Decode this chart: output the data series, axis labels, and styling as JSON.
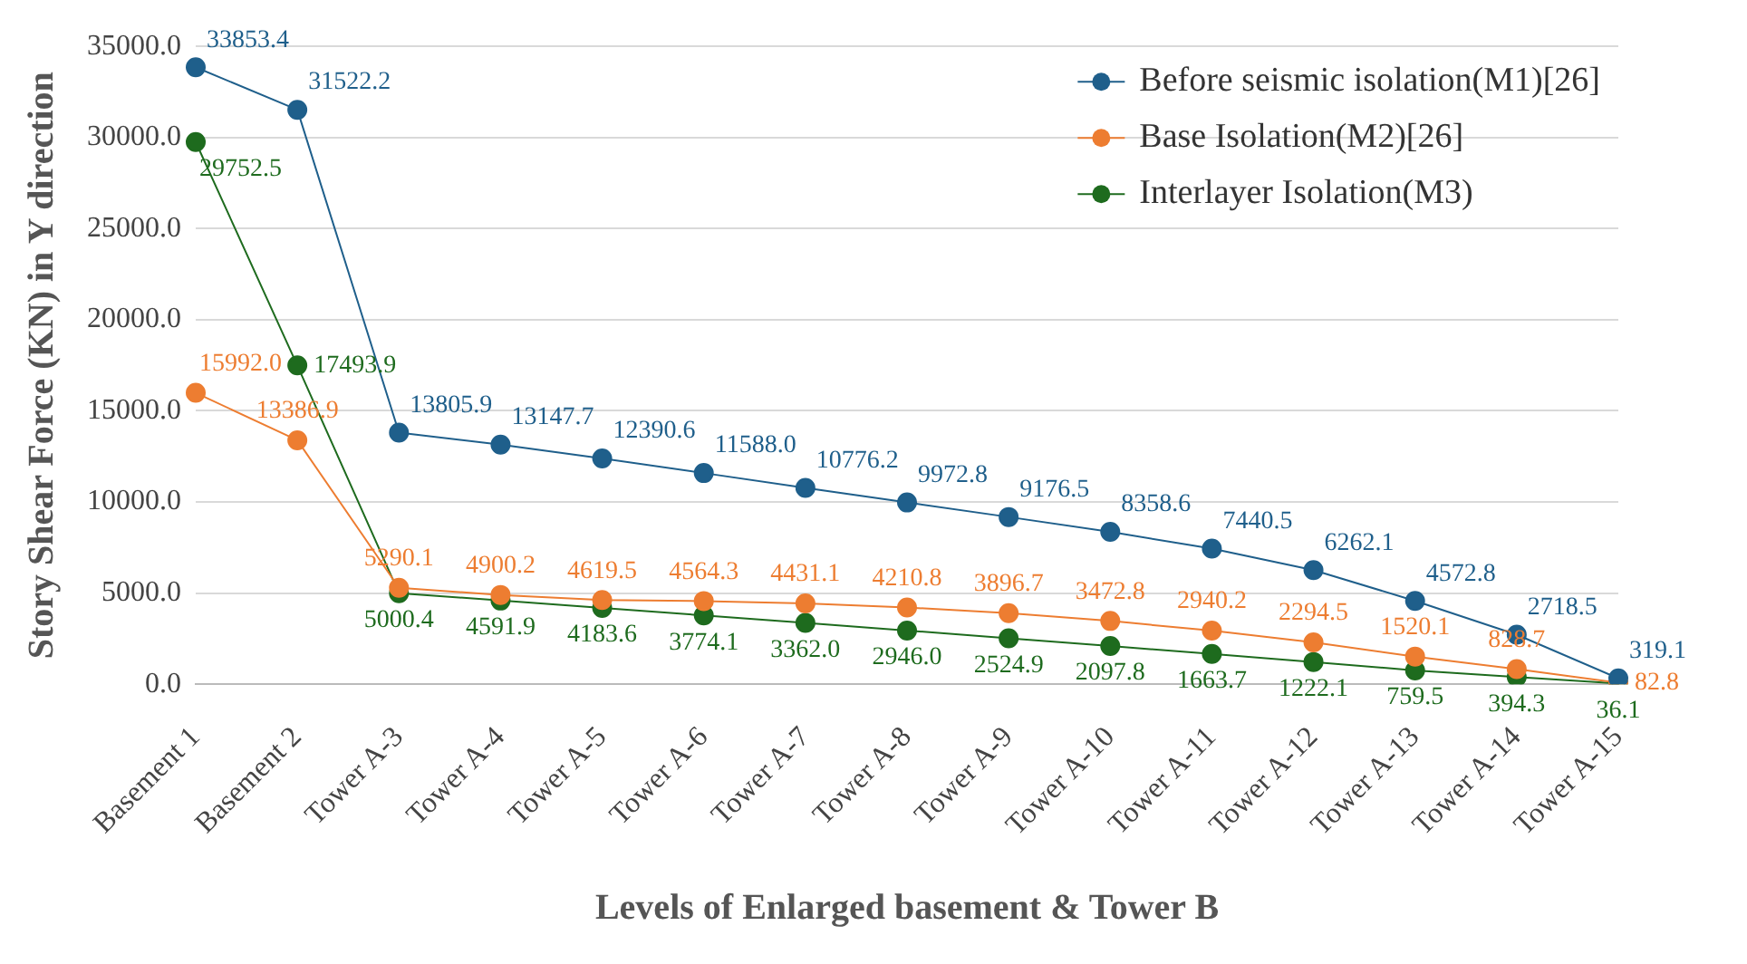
{
  "chart_data": {
    "type": "line",
    "xlabel": "Levels of Enlarged basement & Tower B",
    "ylabel": "Story Shear Force (KN) in Y direction",
    "categories": [
      "Basement 1",
      "Basement 2",
      "Tower A-3",
      "Tower A-4",
      "Tower A-5",
      "Tower A-6",
      "Tower A-7",
      "Tower A-8",
      "Tower A-9",
      "Tower A-10",
      "Tower A-11",
      "Tower A-12",
      "Tower A-13",
      "Tower A-14",
      "Tower A-15"
    ],
    "series": [
      {
        "name": "Before seismic isolation(M1)[26]",
        "color": "#1f5f8b",
        "values": [
          33853.4,
          31522.2,
          13805.9,
          13147.7,
          12390.6,
          11588.0,
          10776.2,
          9972.8,
          9176.5,
          8358.6,
          7440.5,
          6262.1,
          4572.8,
          2718.5,
          319.1
        ],
        "value_labels": [
          "33853.4",
          "31522.2",
          "13805.9",
          "13147.7",
          "12390.6",
          "11588.0",
          "10776.2",
          "9972.8",
          "9176.5",
          "8358.6",
          "7440.5",
          "6262.1",
          "4572.8",
          "2718.5",
          "319.1"
        ]
      },
      {
        "name": "Base Isolation(M2)[26]",
        "color": "#ed7d31",
        "values": [
          15992.0,
          13386.9,
          5290.1,
          4900.2,
          4619.5,
          4564.3,
          4431.1,
          4210.8,
          3896.7,
          3472.8,
          2940.2,
          2294.5,
          1520.1,
          828.7,
          82.8
        ],
        "value_labels": [
          "15992.0",
          "13386.9",
          "5290.1",
          "4900.2",
          "4619.5",
          "4564.3",
          "4431.1",
          "4210.8",
          "3896.7",
          "3472.8",
          "2940.2",
          "2294.5",
          "1520.1",
          "828.7",
          "82.8"
        ]
      },
      {
        "name": "Interlayer Isolation(M3)",
        "color": "#1e6b1e",
        "values": [
          29752.5,
          17493.9,
          5000.4,
          4591.9,
          4183.6,
          3774.1,
          3362.0,
          2946.0,
          2524.9,
          2097.8,
          1663.7,
          1222.1,
          759.5,
          394.3,
          36.1
        ],
        "value_labels": [
          "29752.5",
          "17493.9",
          "5000.4",
          "4591.9",
          "4183.6",
          "3774.1",
          "3362.0",
          "2946.0",
          "2524.9",
          "2097.8",
          "1663.7",
          "1222.1",
          "759.5",
          "394.3",
          "36.1"
        ]
      }
    ],
    "ylim": [
      0,
      35000
    ],
    "yticks": [
      {
        "value": 0,
        "label": "0.0"
      },
      {
        "value": 5000,
        "label": "5000.0"
      },
      {
        "value": 10000,
        "label": "10000.0"
      },
      {
        "value": 15000,
        "label": "15000.0"
      },
      {
        "value": 20000,
        "label": "20000.0"
      },
      {
        "value": 25000,
        "label": "25000.0"
      },
      {
        "value": 30000,
        "label": "30000.0"
      },
      {
        "value": 35000,
        "label": "35000.0"
      }
    ],
    "grid": "y",
    "legend": "top right",
    "marker": "circle",
    "line_style": "solid"
  }
}
